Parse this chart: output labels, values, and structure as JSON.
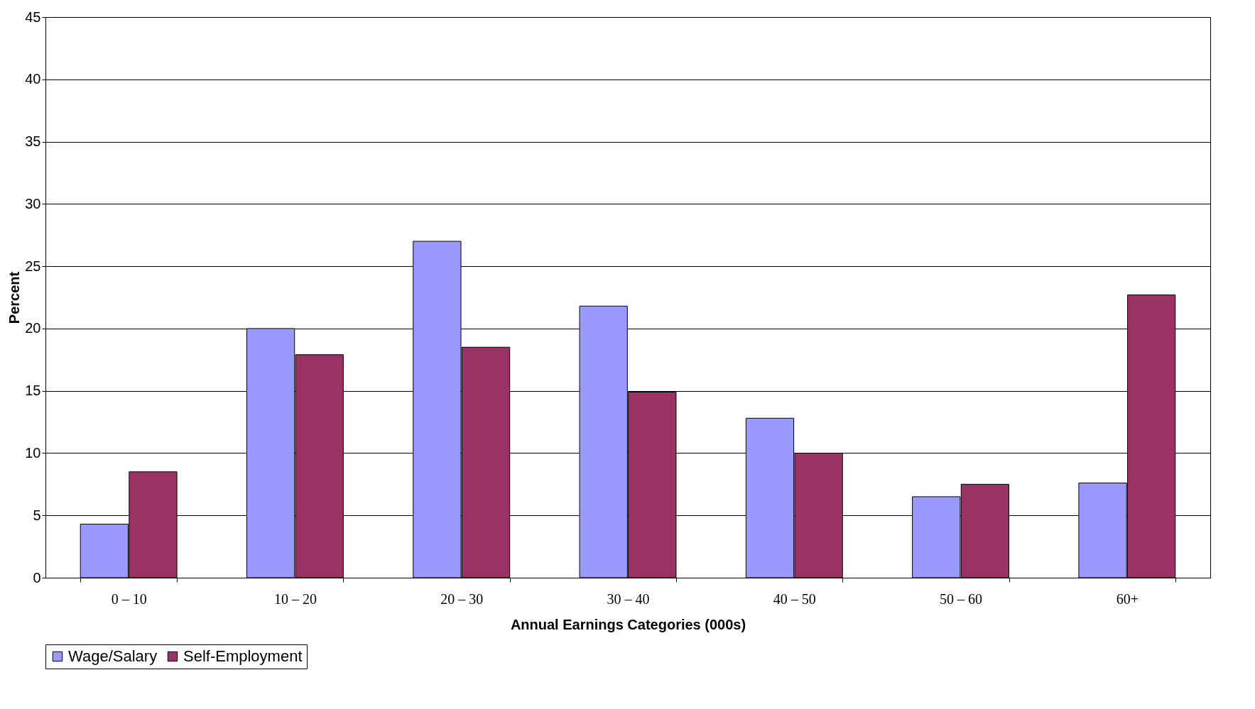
{
  "chart_data": {
    "type": "bar",
    "xlabel": "Annual Earnings Categories (000s)",
    "ylabel": "Percent",
    "categories": [
      "0 – 10",
      "10 – 20",
      "20 – 30",
      "30 – 40",
      "40 – 50",
      "50 – 60",
      "60+"
    ],
    "series": [
      {
        "name": "Wage/Salary",
        "color": "#9999ff",
        "values": [
          4.3,
          20.0,
          27.0,
          21.8,
          12.8,
          6.5,
          7.6
        ]
      },
      {
        "name": "Self-Employment",
        "color": "#993366",
        "values": [
          8.5,
          17.9,
          18.5,
          14.9,
          10.0,
          7.5,
          22.7
        ]
      }
    ],
    "ylim": [
      0,
      45
    ],
    "yticks": [
      0,
      5,
      10,
      15,
      20,
      25,
      30,
      35,
      40,
      45
    ],
    "grid": "y",
    "legend": "bottom"
  }
}
